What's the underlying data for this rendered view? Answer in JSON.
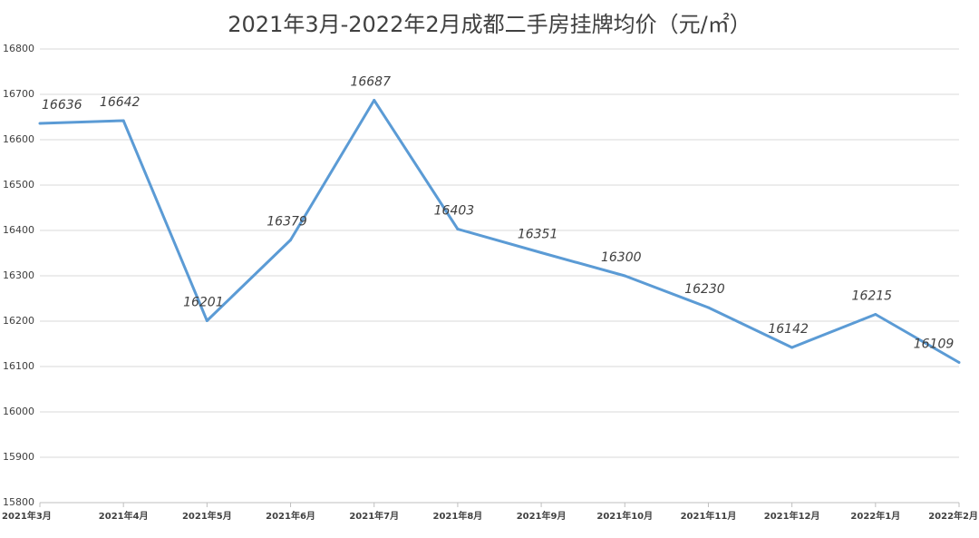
{
  "chart_data": {
    "type": "line",
    "title": "2021年3月-2022年2月成都二手房挂牌均价（元/㎡）",
    "categories": [
      "2021年3月",
      "2021年4月",
      "2021年5月",
      "2021年6月",
      "2021年7月",
      "2021年8月",
      "2021年9月",
      "2021年10月",
      "2021年11月",
      "2021年12月",
      "2022年1月",
      "2022年2月"
    ],
    "values": [
      16636,
      16642,
      16201,
      16379,
      16687,
      16403,
      16351,
      16300,
      16230,
      16142,
      16215,
      16109
    ],
    "color": "#5b9bd5",
    "ylim": [
      15800,
      16800
    ],
    "yticks": [
      15800,
      15900,
      16000,
      16100,
      16200,
      16300,
      16400,
      16500,
      16600,
      16700,
      16800
    ],
    "grid": true
  }
}
